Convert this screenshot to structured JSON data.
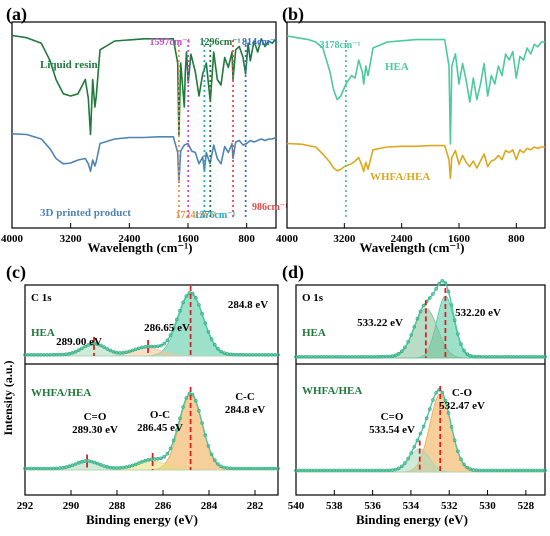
{
  "chart_data": [
    {
      "panel": "(a)",
      "type": "line",
      "xlabel": "Wavelength (cm⁻¹)",
      "ylabel": "",
      "xlim": [
        4000,
        400
      ],
      "reversed_x": true,
      "ticks": [
        {
          "v": 4000,
          "t": "4000"
        },
        {
          "v": 3200,
          "t": "3200"
        },
        {
          "v": 2400,
          "t": "2400"
        },
        {
          "v": 1600,
          "t": "1600"
        },
        {
          "v": 800,
          "t": "800"
        }
      ],
      "series": [
        {
          "name": "Liquid resin",
          "color": "#1f7a3c",
          "x": [
            4000,
            3800,
            3600,
            3480,
            3400,
            3300,
            3200,
            3100,
            3000,
            2960,
            2930,
            2900,
            2870,
            2850,
            2800,
            2600,
            2400,
            2200,
            2000,
            1800,
            1740,
            1724,
            1700,
            1650,
            1637,
            1620,
            1597,
            1560,
            1500,
            1450,
            1400,
            1350,
            1296,
            1250,
            1200,
            1150,
            1100,
            1050,
            1000,
            986,
            950,
            900,
            850,
            814,
            780,
            750,
            700,
            650,
            600,
            550,
            500,
            450,
            400
          ],
          "y": [
            0.95,
            0.93,
            0.88,
            0.72,
            0.55,
            0.42,
            0.4,
            0.42,
            0.55,
            0.38,
            0.05,
            0.55,
            0.3,
            0.4,
            0.82,
            0.9,
            0.91,
            0.92,
            0.92,
            0.92,
            0.7,
            0.04,
            0.7,
            0.3,
            0.62,
            0.8,
            0.52,
            0.78,
            0.62,
            0.4,
            0.6,
            0.7,
            0.35,
            0.8,
            0.55,
            0.5,
            0.75,
            0.66,
            0.8,
            0.55,
            0.82,
            0.85,
            0.75,
            0.6,
            0.88,
            0.72,
            0.9,
            0.8,
            0.92,
            0.85,
            0.9,
            0.88,
            0.92
          ]
        },
        {
          "name": "3D printed product",
          "color": "#4f85b5",
          "x": [
            4000,
            3800,
            3600,
            3480,
            3400,
            3300,
            3200,
            3100,
            3000,
            2960,
            2930,
            2900,
            2870,
            2850,
            2800,
            2600,
            2400,
            2200,
            2000,
            1800,
            1740,
            1724,
            1700,
            1650,
            1600,
            1550,
            1500,
            1450,
            1400,
            1376,
            1350,
            1300,
            1250,
            1200,
            1150,
            1100,
            1050,
            1000,
            986,
            950,
            900,
            850,
            800,
            750,
            700,
            650,
            600,
            550,
            500,
            450,
            400
          ],
          "y": [
            0.95,
            0.94,
            0.88,
            0.75,
            0.62,
            0.55,
            0.56,
            0.6,
            0.62,
            0.55,
            0.45,
            0.6,
            0.52,
            0.58,
            0.82,
            0.88,
            0.9,
            0.9,
            0.91,
            0.91,
            0.7,
            0.3,
            0.72,
            0.8,
            0.82,
            0.72,
            0.7,
            0.55,
            0.64,
            0.45,
            0.7,
            0.55,
            0.8,
            0.62,
            0.55,
            0.78,
            0.7,
            0.82,
            0.62,
            0.84,
            0.86,
            0.8,
            0.82,
            0.86,
            0.84,
            0.86,
            0.88,
            0.86,
            0.88,
            0.88,
            0.9
          ]
        }
      ],
      "annotations": [
        {
          "x": 1724,
          "text": "1724cm⁻¹",
          "color": "#e8954a"
        },
        {
          "x": 1597,
          "text": "1597cm⁻¹",
          "color": "#c84bd1"
        },
        {
          "x": 1376,
          "text": "1376cm⁻¹",
          "color": "#29a9c9"
        },
        {
          "x": 1296,
          "text": "1296cm⁻¹",
          "color": "#1f7a3c"
        },
        {
          "x": 986,
          "text": "986cm⁻¹",
          "color": "#e84a4a"
        },
        {
          "x": 814,
          "text": "814cm⁻¹",
          "color": "#3a6fd8"
        }
      ]
    },
    {
      "panel": "(b)",
      "type": "line",
      "xlabel": "Wavelength (cm⁻¹)",
      "ylabel": "",
      "xlim": [
        4000,
        400
      ],
      "reversed_x": true,
      "ticks": [
        {
          "v": 4000,
          "t": "4000"
        },
        {
          "v": 3200,
          "t": "3200"
        },
        {
          "v": 2400,
          "t": "2400"
        },
        {
          "v": 1600,
          "t": "1600"
        },
        {
          "v": 800,
          "t": "800"
        }
      ],
      "series": [
        {
          "name": "HEA",
          "color": "#4cc9a1",
          "x": [
            4000,
            3900,
            3800,
            3700,
            3600,
            3500,
            3400,
            3350,
            3300,
            3250,
            3178,
            3100,
            3050,
            3000,
            2950,
            2930,
            2900,
            2870,
            2850,
            2800,
            2600,
            2400,
            2200,
            2000,
            1800,
            1740,
            1720,
            1700,
            1650,
            1600,
            1550,
            1500,
            1450,
            1400,
            1350,
            1300,
            1250,
            1200,
            1150,
            1100,
            1050,
            1000,
            950,
            900,
            850,
            800,
            750,
            700,
            650,
            600,
            550,
            500,
            450,
            400
          ],
          "y": [
            0.95,
            0.94,
            0.93,
            0.92,
            0.9,
            0.85,
            0.65,
            0.5,
            0.42,
            0.45,
            0.55,
            0.62,
            0.6,
            0.75,
            0.65,
            0.55,
            0.7,
            0.62,
            0.68,
            0.85,
            0.9,
            0.91,
            0.92,
            0.92,
            0.92,
            0.7,
            0.05,
            0.7,
            0.8,
            0.55,
            0.72,
            0.58,
            0.4,
            0.6,
            0.42,
            0.55,
            0.72,
            0.45,
            0.62,
            0.55,
            0.7,
            0.62,
            0.8,
            0.75,
            0.82,
            0.6,
            0.78,
            0.75,
            0.85,
            0.8,
            0.88,
            0.86,
            0.9,
            0.9
          ]
        },
        {
          "name": "WHFA/HEA",
          "color": "#dba91e",
          "x": [
            4000,
            3800,
            3600,
            3500,
            3400,
            3350,
            3300,
            3250,
            3200,
            3100,
            3050,
            3000,
            2950,
            2930,
            2900,
            2870,
            2850,
            2800,
            2600,
            2400,
            2200,
            2000,
            1800,
            1740,
            1720,
            1700,
            1650,
            1600,
            1550,
            1500,
            1450,
            1400,
            1350,
            1300,
            1250,
            1200,
            1150,
            1100,
            1050,
            1000,
            950,
            900,
            850,
            800,
            750,
            700,
            650,
            600,
            550,
            500,
            450,
            400
          ],
          "y": [
            0.95,
            0.94,
            0.9,
            0.8,
            0.68,
            0.6,
            0.56,
            0.58,
            0.62,
            0.66,
            0.7,
            0.75,
            0.62,
            0.55,
            0.68,
            0.58,
            0.66,
            0.86,
            0.9,
            0.91,
            0.91,
            0.92,
            0.92,
            0.72,
            0.45,
            0.75,
            0.85,
            0.65,
            0.78,
            0.68,
            0.62,
            0.7,
            0.6,
            0.7,
            0.8,
            0.62,
            0.7,
            0.72,
            0.78,
            0.72,
            0.85,
            0.82,
            0.86,
            0.72,
            0.86,
            0.82,
            0.88,
            0.86,
            0.9,
            0.88,
            0.9,
            0.9
          ]
        }
      ],
      "annotations": [
        {
          "x": 3178,
          "text": "3178cm⁻¹",
          "color": "#4cc9a1"
        }
      ]
    },
    {
      "panel": "(c)",
      "type": "line",
      "xlabel": "Binding energy (eV)",
      "ylabel": "Intensity (a.u.)",
      "xlim": [
        292,
        281
      ],
      "reversed_x": true,
      "ticks": [
        {
          "v": 292,
          "t": "292"
        },
        {
          "v": 290,
          "t": "290"
        },
        {
          "v": 288,
          "t": "288"
        },
        {
          "v": 286,
          "t": "286"
        },
        {
          "v": 284,
          "t": "284"
        },
        {
          "v": 282,
          "t": "282"
        }
      ],
      "core_level": "C 1s",
      "spectra": [
        {
          "name": "HEA",
          "color": "#4cc9a1",
          "peaks": [
            {
              "center": 284.8,
              "label": "284.8 eV",
              "amp": 1.0,
              "sigma": 0.55,
              "fill": "#4cc9a1"
            },
            {
              "center": 286.65,
              "label": "286.65 eV",
              "amp": 0.13,
              "sigma": 0.6,
              "fill": "#f3c79a"
            },
            {
              "center": 289.0,
              "label": "289.00 eV",
              "amp": 0.18,
              "sigma": 0.5,
              "fill": "#a8d8b8"
            }
          ]
        },
        {
          "name": "WHFA/HEA",
          "color": "#4cc9a1",
          "peaks": [
            {
              "center": 284.8,
              "label": "C-C\n284.8 eV",
              "amp": 1.0,
              "sigma": 0.5,
              "fill": "#f0a848"
            },
            {
              "center": 286.45,
              "label": "O-C\n286.45 eV",
              "amp": 0.12,
              "sigma": 0.6,
              "fill": "#e7dc7a"
            },
            {
              "center": 289.3,
              "label": "C=O\n289.30 eV",
              "amp": 0.1,
              "sigma": 0.5,
              "fill": "#a8d8b8"
            }
          ]
        }
      ]
    },
    {
      "panel": "(d)",
      "type": "line",
      "xlabel": "Binding energy (eV)",
      "ylabel": "",
      "xlim": [
        540,
        527
      ],
      "reversed_x": true,
      "ticks": [
        {
          "v": 540,
          "t": "540"
        },
        {
          "v": 538,
          "t": "538"
        },
        {
          "v": 536,
          "t": "536"
        },
        {
          "v": 534,
          "t": "534"
        },
        {
          "v": 532,
          "t": "532"
        },
        {
          "v": 530,
          "t": "530"
        },
        {
          "v": 528,
          "t": "528"
        }
      ],
      "core_level": "O 1s",
      "spectra": [
        {
          "name": "HEA",
          "color": "#4cc9a1",
          "peaks": [
            {
              "center": 532.2,
              "label": "532.20 eV",
              "amp": 1.0,
              "sigma": 0.45,
              "fill": "#4cc9a1"
            },
            {
              "center": 533.22,
              "label": "533.22 eV",
              "amp": 0.8,
              "sigma": 0.6,
              "fill": "#7fbf95"
            }
          ]
        },
        {
          "name": "WHFA/HEA",
          "color": "#4cc9a1",
          "peaks": [
            {
              "center": 532.47,
              "label": "C-O\n532.47 eV",
              "amp": 1.0,
              "sigma": 0.55,
              "fill": "#f0a848"
            },
            {
              "center": 533.54,
              "label": "C=O\n533.54 eV",
              "amp": 0.3,
              "sigma": 0.5,
              "fill": "#a8d8b8"
            }
          ]
        }
      ]
    }
  ]
}
